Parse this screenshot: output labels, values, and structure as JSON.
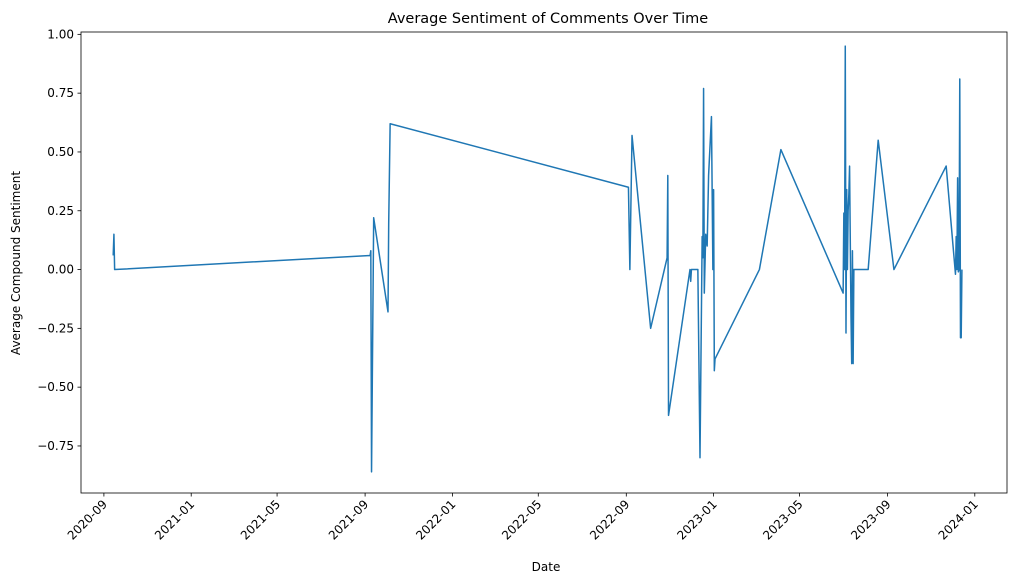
{
  "chart_data": {
    "type": "line",
    "title": "Average Sentiment of Comments Over Time",
    "xlabel": "Date",
    "ylabel": "Average Compound Sentiment",
    "x_axis_type": "date",
    "xlim": [
      "2020-07-31",
      "2024-02-15"
    ],
    "ylim": [
      -0.95,
      1.01
    ],
    "x_ticks": [
      "2020-09",
      "2021-01",
      "2021-05",
      "2021-09",
      "2022-01",
      "2022-05",
      "2022-09",
      "2023-01",
      "2023-05",
      "2023-09",
      "2024-01"
    ],
    "y_ticks": [
      -0.75,
      -0.5,
      -0.25,
      0.0,
      0.25,
      0.5,
      0.75,
      1.0
    ],
    "y_tick_labels": [
      "−0.75",
      "−0.50",
      "−0.25",
      "0.00",
      "0.25",
      "0.50",
      "0.75",
      "1.00"
    ],
    "grid": false,
    "legend": "none",
    "series": [
      {
        "color": "#1f77b4",
        "points": [
          [
            "2020-09-14",
            0.06
          ],
          [
            "2020-09-15",
            0.15
          ],
          [
            "2020-09-16",
            0.0
          ],
          [
            "2021-09-08",
            0.06
          ],
          [
            "2021-09-09",
            0.08
          ],
          [
            "2021-09-10",
            -0.86
          ],
          [
            "2021-09-13",
            0.22
          ],
          [
            "2021-10-03",
            -0.18
          ],
          [
            "2021-10-04",
            0.2
          ],
          [
            "2021-10-06",
            0.62
          ],
          [
            "2022-09-04",
            0.35
          ],
          [
            "2022-09-06",
            0.0
          ],
          [
            "2022-09-09",
            0.57
          ],
          [
            "2022-10-05",
            -0.25
          ],
          [
            "2022-10-28",
            0.05
          ],
          [
            "2022-10-29",
            0.4
          ],
          [
            "2022-10-30",
            -0.62
          ],
          [
            "2022-11-29",
            0.0
          ],
          [
            "2022-11-30",
            -0.05
          ],
          [
            "2022-12-01",
            0.0
          ],
          [
            "2022-12-03",
            0.0
          ],
          [
            "2022-12-10",
            0.0
          ],
          [
            "2022-12-13",
            -0.8
          ],
          [
            "2022-12-16",
            0.14
          ],
          [
            "2022-12-17",
            0.05
          ],
          [
            "2022-12-18",
            0.77
          ],
          [
            "2022-12-19",
            -0.1
          ],
          [
            "2022-12-21",
            0.15
          ],
          [
            "2022-12-23",
            0.1
          ],
          [
            "2022-12-25",
            0.4
          ],
          [
            "2022-12-29",
            0.65
          ],
          [
            "2022-12-31",
            0.0
          ],
          [
            "2023-01-01",
            0.34
          ],
          [
            "2023-01-02",
            -0.43
          ],
          [
            "2023-01-03",
            -0.38
          ],
          [
            "2023-03-06",
            0.0
          ],
          [
            "2023-04-05",
            0.51
          ],
          [
            "2023-07-01",
            -0.1
          ],
          [
            "2023-07-02",
            0.24
          ],
          [
            "2023-07-03",
            0.0
          ],
          [
            "2023-07-04",
            0.95
          ],
          [
            "2023-07-05",
            -0.27
          ],
          [
            "2023-07-06",
            0.34
          ],
          [
            "2023-07-07",
            0.0
          ],
          [
            "2023-07-08",
            0.25
          ],
          [
            "2023-07-09",
            0.32
          ],
          [
            "2023-07-10",
            0.44
          ],
          [
            "2023-07-12",
            -0.2
          ],
          [
            "2023-07-13",
            -0.4
          ],
          [
            "2023-07-14",
            0.08
          ],
          [
            "2023-07-15",
            -0.4
          ],
          [
            "2023-07-16",
            0.0
          ],
          [
            "2023-08-05",
            0.0
          ],
          [
            "2023-08-19",
            0.55
          ],
          [
            "2023-09-10",
            0.0
          ],
          [
            "2023-11-22",
            0.44
          ],
          [
            "2023-12-05",
            -0.02
          ],
          [
            "2023-12-06",
            0.14
          ],
          [
            "2023-12-07",
            0.0
          ],
          [
            "2023-12-08",
            0.39
          ],
          [
            "2023-12-09",
            -0.01
          ],
          [
            "2023-12-10",
            0.0
          ],
          [
            "2023-12-11",
            0.81
          ],
          [
            "2023-12-12",
            -0.29
          ],
          [
            "2023-12-13",
            -0.29
          ],
          [
            "2023-12-14",
            0.0
          ]
        ]
      }
    ]
  }
}
